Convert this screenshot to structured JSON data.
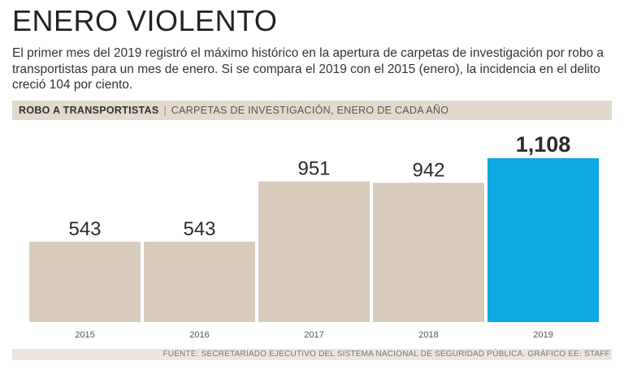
{
  "headline": "ENERO VIOLENTO",
  "deck": "El primer mes del 2019 registró el máximo histórico en la apertura de carpetas de investigación por robo a transportistas para un mes de enero. Si se compara el 2019 con el 2015 (enero), la incidencia en el delito creció 104 por ciento.",
  "source": "FUENTE: SECRETARIADO EJECUTIVO DEL SISTEMA NACIONAL DE SEGURIDAD PÚBLICA. GRÁFICO EE: STAFF",
  "colors": {
    "bar": "#d8cbbb",
    "highlight": "#0fa9e6",
    "band": "#e3d9cc"
  },
  "chart_data": {
    "type": "bar",
    "title": "ROBO A TRANSPORTISTAS",
    "subtitle": "CARPETAS DE INVESTIGACIÓN, ENERO DE CADA AÑO",
    "categories": [
      "2015",
      "2016",
      "2017",
      "2018",
      "2019"
    ],
    "values": [
      543,
      543,
      951,
      942,
      1108
    ],
    "value_labels": [
      "543",
      "543",
      "951",
      "942",
      "1,108"
    ],
    "highlight_index": 4,
    "xlabel": "",
    "ylabel": "",
    "ylim": [
      0,
      1108
    ],
    "grid": false,
    "legend": "none"
  }
}
